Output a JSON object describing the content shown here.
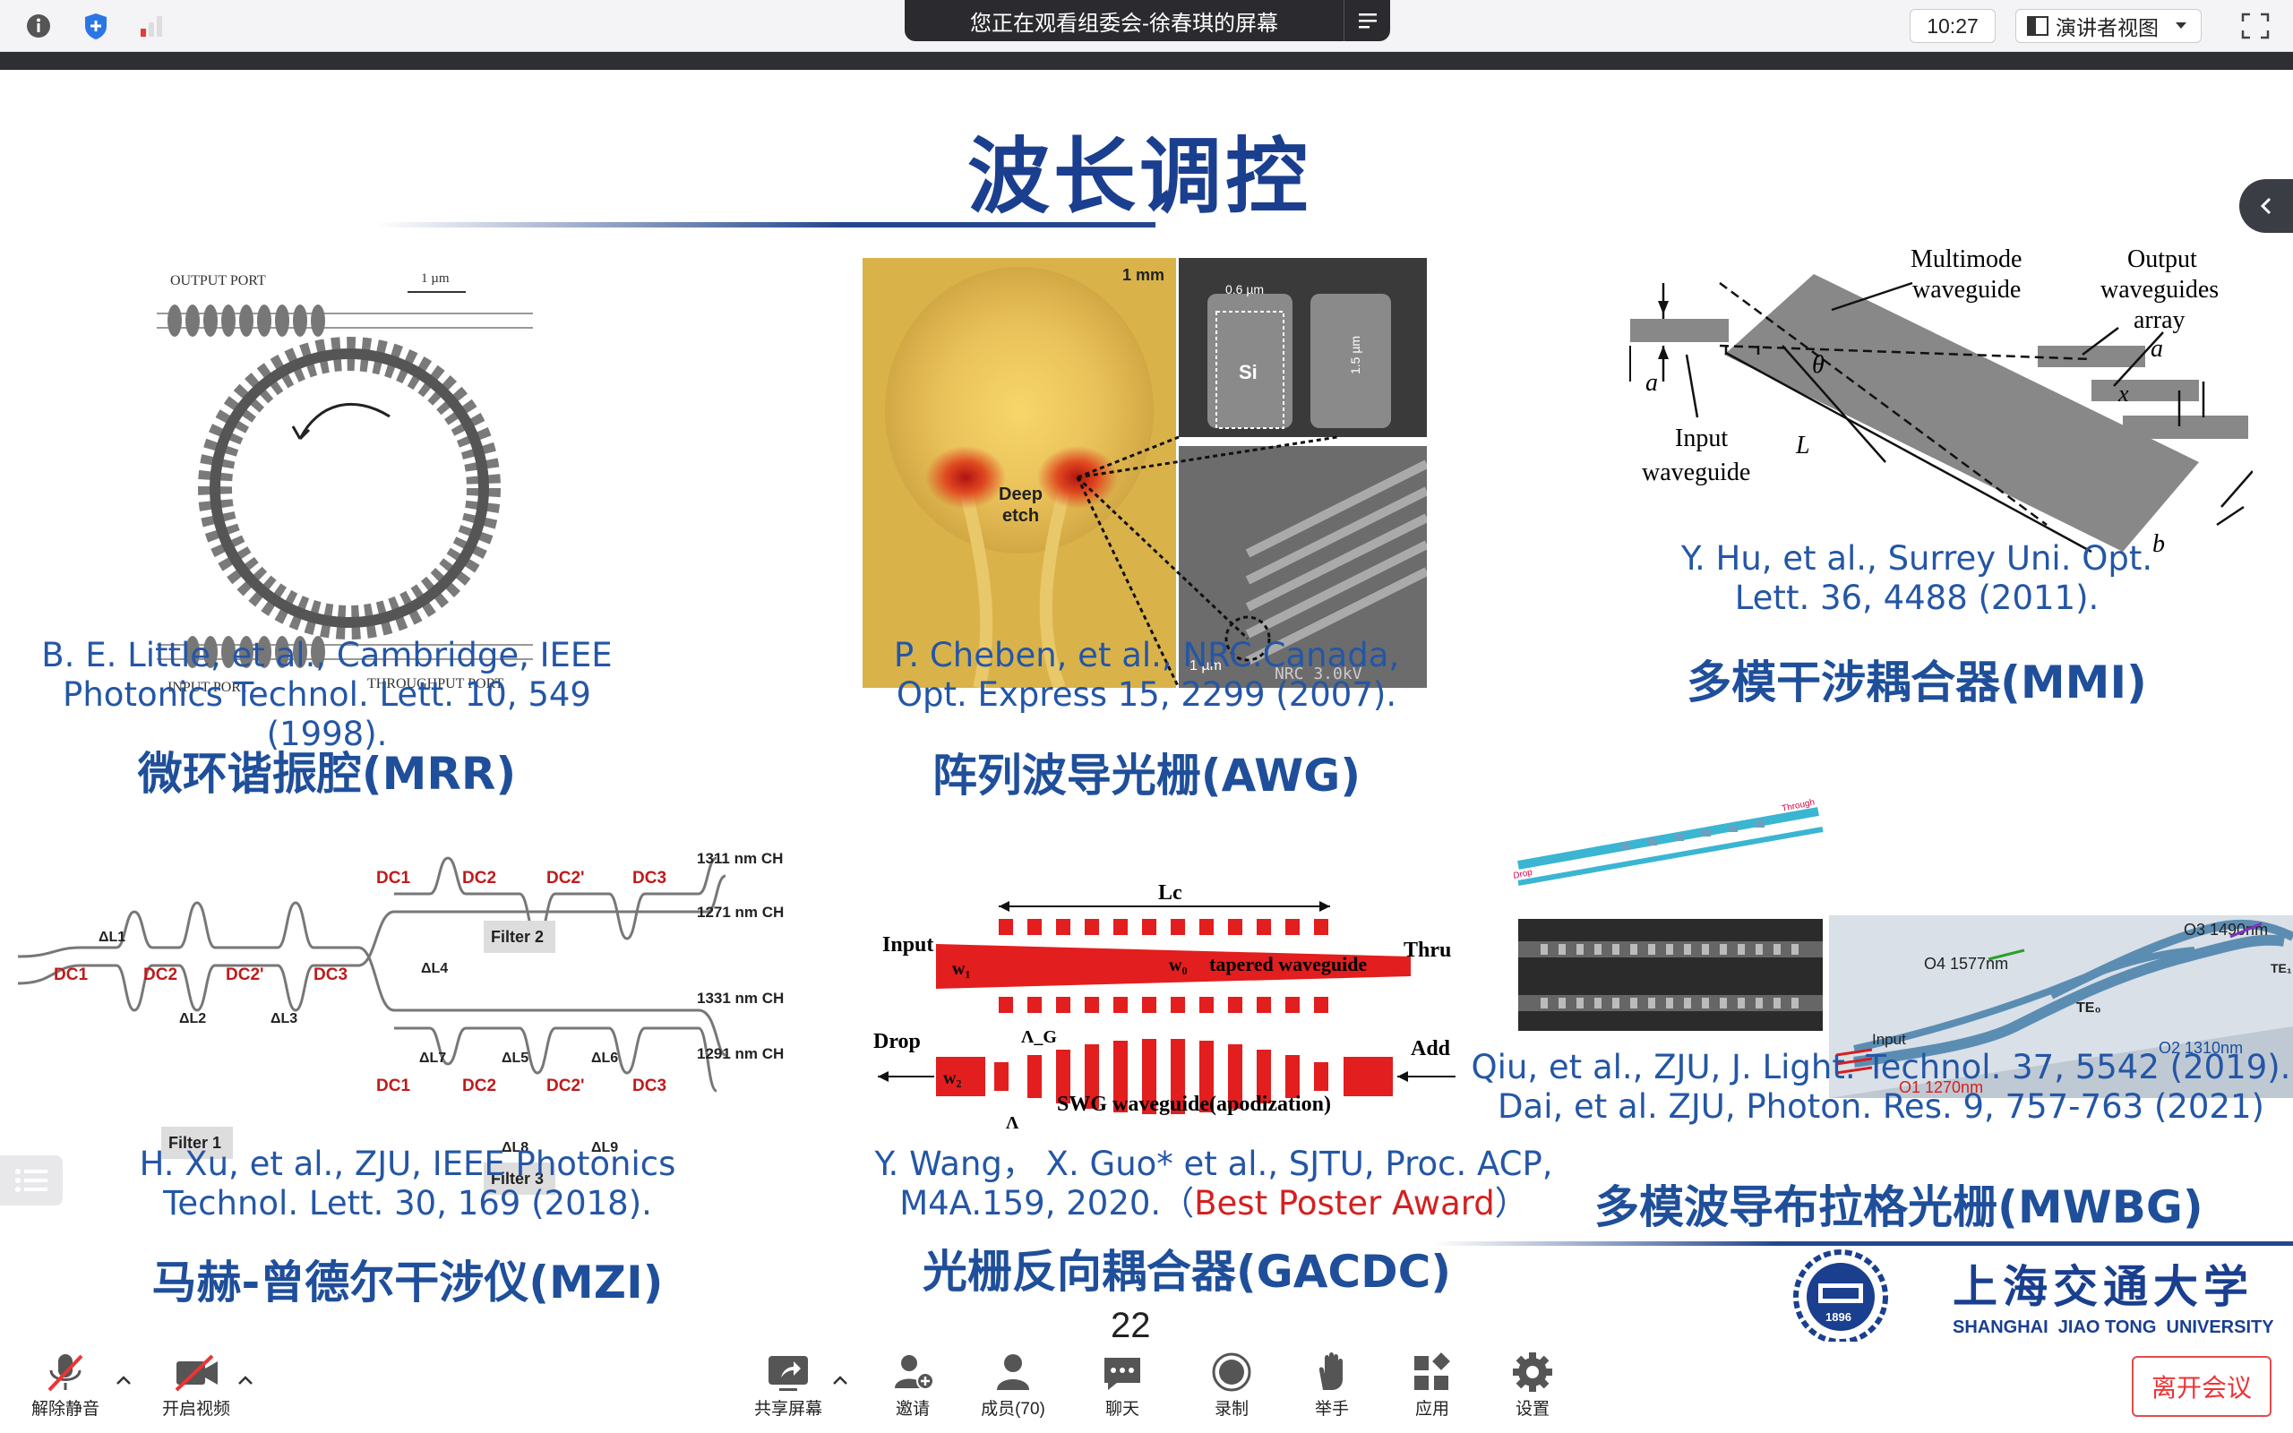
{
  "topbar": {
    "share_text": "您正在观看组委会-徐春琪的屏幕",
    "clock": "10:27",
    "view_mode": "演讲者视图"
  },
  "slide": {
    "title": "波长调控",
    "page_number": "22",
    "panels": {
      "mrr": {
        "ref_line1": "B. E. Little, et al., Cambridge, IEEE",
        "ref_line2": "Photonics Technol. Lett. 10, 549 (1998).",
        "caption": "微环谐振腔(MRR)",
        "fig_output": "OUTPUT PORT",
        "fig_input": "INPUT PORT",
        "fig_through": "THROUGHPUT PORT",
        "fig_scale": "1 µm"
      },
      "awg": {
        "ref_line1": "P. Cheben, et al., NRC.Canada,",
        "ref_line2": "Opt. Express 15, 2299 (2007).",
        "caption": "阵列波导光栅(AWG)",
        "fig_scale": "1 mm",
        "fig_deep": "Deep",
        "fig_etch": "etch",
        "fig_si": "Si",
        "fig_w": "0.6 µm",
        "fig_h": "1.5 µm",
        "fig_1um": "1 µm",
        "fig_sem": "NRC  3.0kV"
      },
      "mmi": {
        "ref_line1": "Y. Hu, et al., Surrey Uni. Opt.",
        "ref_line2": "Lett. 36, 4488 (2011).",
        "caption": "多模干涉耦合器(MMI)",
        "fig_multimode": "Multimode",
        "fig_waveguide": "waveguide",
        "fig_output": "Output",
        "fig_waveguides": "waveguides",
        "fig_array": "array",
        "fig_input": "Input",
        "fig_input_wg": "waveguide",
        "fig_L": "L",
        "fig_theta": "θ",
        "fig_a": "a",
        "fig_x": "x",
        "fig_b": "b"
      },
      "mzi": {
        "ref_line1": "H. Xu, et al., ZJU, IEEE Photonics",
        "ref_line2": "Technol. Lett. 30, 169 (2018).",
        "caption": "马赫-曾德尔干涉仪(MZI)",
        "filter1": "Filter 1",
        "filter2": "Filter 2",
        "filter3": "Filter 3",
        "ch1311": "1311 nm CH",
        "ch1271": "1271 nm CH",
        "ch1331": "1331 nm CH",
        "ch1291": "1291 nm CH",
        "dc_labels": [
          "DC1",
          "DC2",
          "DC2'",
          "DC3"
        ],
        "dl1": "ΔL1",
        "dl2": "ΔL2",
        "dl3": "ΔL3",
        "dl4": "ΔL4",
        "dl5": "ΔL5",
        "dl6": "ΔL6",
        "dl7": "ΔL7",
        "dl8": "ΔL8",
        "dl9": "ΔL9"
      },
      "gacdc": {
        "ref_line1": "Y. Wang， X. Guo* et al., SJTU, Proc. ACP,",
        "ref_line2_prefix": "M4A.159, 2020.（",
        "ref_line2_award": "Best Poster Award",
        "ref_line2_suffix": "）",
        "caption": "光栅反向耦合器(GACDC)",
        "fig_lc": "Lc",
        "fig_input": "Input",
        "fig_thru": "Thru",
        "fig_drop": "Drop",
        "fig_add": "Add",
        "fig_tapered": "tapered waveguide",
        "fig_w0": "w₀",
        "fig_w1": "w₁",
        "fig_w2": "w₂",
        "fig_ag": "Λ_G",
        "fig_swg": "SWG waveguide(apodization)",
        "fig_lambda": "Λ"
      },
      "mwbg": {
        "ref_line1": "Qiu, et al., ZJU, J. Light. Technol. 37, 5542 (2019).",
        "ref_line2": "Dai, et al. ZJU, Photon. Res. 9, 757-763 (2021)",
        "caption": "多模波导布拉格光栅(MWBG)",
        "fig_o3": "O3 1490nm",
        "fig_o4": "O4 1577nm",
        "fig_o2": "O2 1310nm",
        "fig_o1": "O1 1270nm",
        "fig_input": "Input",
        "fig_te0": "TE₀",
        "fig_te1": "TE₁",
        "fig_drop": "Drop",
        "fig_through": "Through"
      }
    },
    "logo": {
      "chinese": "上海交通大学",
      "english": "SHANGHAI  JIAO TONG  UNIVERSITY",
      "year": "1896"
    }
  },
  "bottombar": {
    "items": [
      {
        "label": "解除静音",
        "icon": "mic-muted-icon"
      },
      {
        "label": "开启视频",
        "icon": "video-off-icon"
      },
      {
        "label": "共享屏幕",
        "icon": "share-screen-icon"
      },
      {
        "label": "邀请",
        "icon": "invite-icon"
      },
      {
        "label": "成员(70)",
        "icon": "members-icon"
      },
      {
        "label": "聊天",
        "icon": "chat-icon"
      },
      {
        "label": "录制",
        "icon": "record-icon"
      },
      {
        "label": "举手",
        "icon": "raise-hand-icon"
      },
      {
        "label": "应用",
        "icon": "apps-icon"
      },
      {
        "label": "设置",
        "icon": "settings-icon"
      }
    ],
    "leave": "离开会议"
  },
  "colors": {
    "accent": "#1f4f9a",
    "award_red": "#d42020",
    "leave_red": "#e33333"
  }
}
